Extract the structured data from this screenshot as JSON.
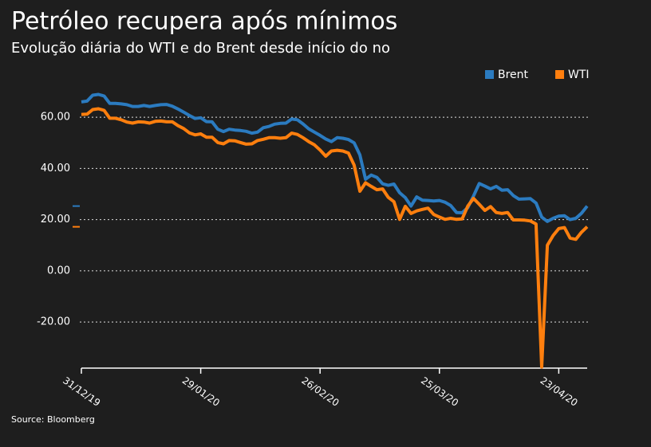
{
  "chart_data": {
    "type": "line",
    "title": "Petróleo recupera após mínimos",
    "subtitle": "Evolução diária do WTI e do Brent desde início do no",
    "source": "Source: Bloomberg",
    "categories": [
      "31/12/19",
      null,
      null,
      null,
      null,
      null,
      null,
      null,
      null,
      null,
      null,
      null,
      null,
      null,
      null,
      null,
      null,
      null,
      null,
      null,
      null,
      "29/01/20",
      null,
      null,
      null,
      null,
      null,
      null,
      null,
      null,
      null,
      null,
      null,
      null,
      null,
      null,
      null,
      null,
      null,
      null,
      null,
      null,
      "26/02/20",
      null,
      null,
      null,
      null,
      null,
      null,
      null,
      null,
      null,
      null,
      null,
      null,
      null,
      null,
      null,
      null,
      null,
      null,
      null,
      null,
      "25/03/20",
      null,
      null,
      null,
      null,
      null,
      null,
      null,
      null,
      null,
      null,
      null,
      null,
      null,
      null,
      null,
      null,
      null,
      null,
      null,
      null,
      "23/04/20",
      null,
      null,
      null,
      null,
      null
    ],
    "series": [
      {
        "name": "Brent",
        "color": "#2b7bc0",
        "values": [
          66.0,
          66.3,
          68.6,
          68.9,
          68.3,
          65.4,
          65.4,
          65.2,
          64.9,
          64.2,
          64.2,
          64.6,
          64.2,
          64.6,
          64.9,
          65.0,
          64.3,
          63.2,
          62.0,
          60.7,
          59.5,
          59.8,
          58.3,
          58.2,
          55.3,
          54.4,
          55.3,
          55.0,
          54.8,
          54.5,
          53.8,
          54.2,
          55.9,
          56.4,
          57.3,
          57.6,
          57.7,
          59.3,
          59.0,
          57.4,
          55.5,
          54.2,
          52.9,
          51.5,
          50.5,
          52.0,
          51.8,
          51.3,
          50.0,
          45.3,
          35.8,
          37.4,
          36.5,
          34.0,
          33.4,
          33.9,
          30.5,
          28.6,
          25.3,
          28.9,
          27.6,
          27.5,
          27.3,
          27.5,
          26.8,
          25.5,
          22.8,
          22.7,
          24.7,
          29.2,
          34.1,
          33.1,
          32.0,
          33.0,
          31.5,
          31.7,
          29.4,
          28.0,
          28.1,
          28.2,
          26.5,
          21.0,
          19.3,
          20.5,
          21.4,
          21.5,
          20.0,
          20.5,
          22.5,
          25.3
        ]
      },
      {
        "name": "WTI",
        "color": "#ff7f0e",
        "values": [
          61.1,
          61.2,
          63.0,
          63.3,
          62.7,
          59.6,
          59.6,
          59.0,
          58.1,
          57.7,
          58.2,
          58.1,
          57.7,
          58.4,
          58.5,
          58.2,
          58.2,
          56.7,
          55.6,
          53.9,
          53.1,
          53.5,
          52.2,
          52.2,
          50.1,
          49.6,
          50.9,
          50.8,
          50.1,
          49.5,
          49.6,
          50.9,
          51.4,
          52.0,
          52.0,
          51.8,
          52.0,
          53.8,
          53.3,
          52.0,
          50.5,
          49.2,
          47.2,
          44.8,
          46.8,
          47.1,
          46.8,
          46.0,
          41.3,
          31.1,
          34.4,
          33.0,
          31.7,
          32.0,
          28.7,
          27.0,
          20.1,
          25.2,
          22.4,
          23.4,
          24.0,
          24.5,
          22.0,
          21.0,
          20.1,
          20.5,
          20.1,
          20.3,
          25.3,
          28.3,
          26.0,
          23.6,
          25.1,
          22.8,
          22.4,
          22.8,
          19.9,
          19.9,
          19.8,
          19.5,
          18.3,
          -37.6,
          10.0,
          13.8,
          16.5,
          16.9,
          12.8,
          12.3,
          15.1,
          17.2
        ]
      }
    ],
    "ylim": [
      -38,
      70
    ],
    "yticks": [
      {
        "value": -20,
        "label": "-20.00"
      },
      {
        "value": 0,
        "label": "0.00"
      },
      {
        "value": 20,
        "label": "20.00"
      },
      {
        "value": 40,
        "label": "40.00"
      },
      {
        "value": 60,
        "label": "60.00"
      }
    ],
    "grid": true,
    "legend": "top-right"
  }
}
